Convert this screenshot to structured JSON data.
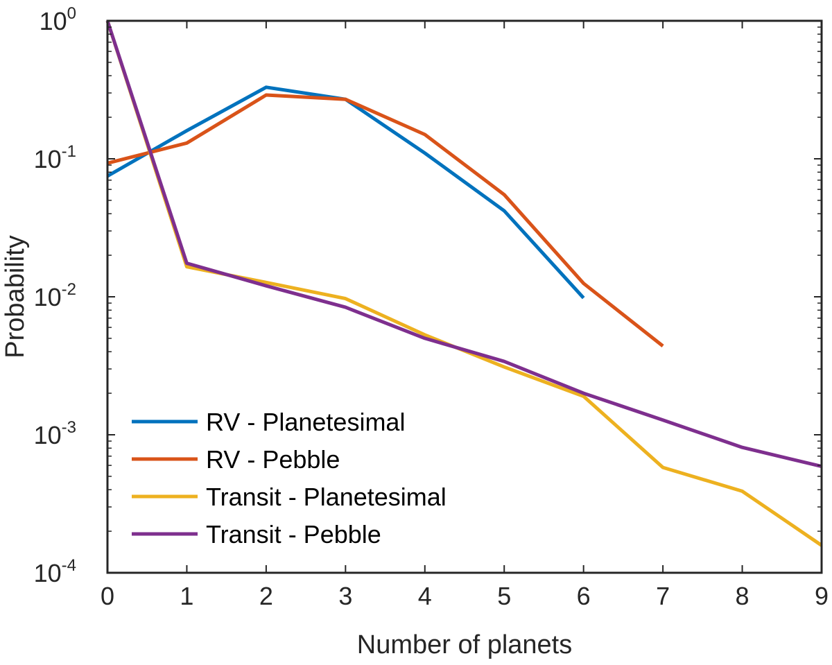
{
  "chart_data": {
    "type": "line",
    "title": "",
    "xlabel": "Number of planets",
    "ylabel": "Probability",
    "xlim": [
      0,
      9
    ],
    "ylim": [
      0.0001,
      1
    ],
    "yscale": "log",
    "grid": false,
    "legend_position": "bottom-left",
    "xticks": [
      "0",
      "1",
      "2",
      "3",
      "4",
      "5",
      "6",
      "7",
      "8",
      "9"
    ],
    "yticks": [
      {
        "base": "10",
        "exp": "0",
        "value": 1
      },
      {
        "base": "10",
        "exp": "-1",
        "value": 0.1
      },
      {
        "base": "10",
        "exp": "-2",
        "value": 0.01
      },
      {
        "base": "10",
        "exp": "-3",
        "value": 0.001
      },
      {
        "base": "10",
        "exp": "-4",
        "value": 0.0001
      }
    ],
    "series": [
      {
        "name": "RV - Planetesimal",
        "color": "#0072BD",
        "x": [
          0,
          1,
          2,
          3,
          4,
          5,
          6
        ],
        "y": [
          0.075,
          0.16,
          0.33,
          0.27,
          0.11,
          0.042,
          0.0098
        ]
      },
      {
        "name": "RV - Pebble",
        "color": "#D95319",
        "x": [
          0,
          1,
          2,
          3,
          4,
          5,
          6,
          7
        ],
        "y": [
          0.093,
          0.13,
          0.29,
          0.27,
          0.15,
          0.055,
          0.0125,
          0.0044
        ]
      },
      {
        "name": "Transit - Planetesimal",
        "color": "#EDB120",
        "x": [
          0,
          1,
          2,
          3,
          4,
          5,
          6,
          7,
          8,
          9
        ],
        "y": [
          1.0,
          0.0165,
          0.0127,
          0.0097,
          0.0053,
          0.0031,
          0.0019,
          0.00058,
          0.00039,
          0.000158
        ]
      },
      {
        "name": "Transit - Pebble",
        "color": "#7E2F8E",
        "x": [
          0,
          1,
          2,
          3,
          4,
          5,
          6,
          7,
          8,
          9
        ],
        "y": [
          1.0,
          0.0175,
          0.012,
          0.0084,
          0.005,
          0.0034,
          0.002,
          0.00128,
          0.00081,
          0.00059
        ]
      }
    ]
  }
}
